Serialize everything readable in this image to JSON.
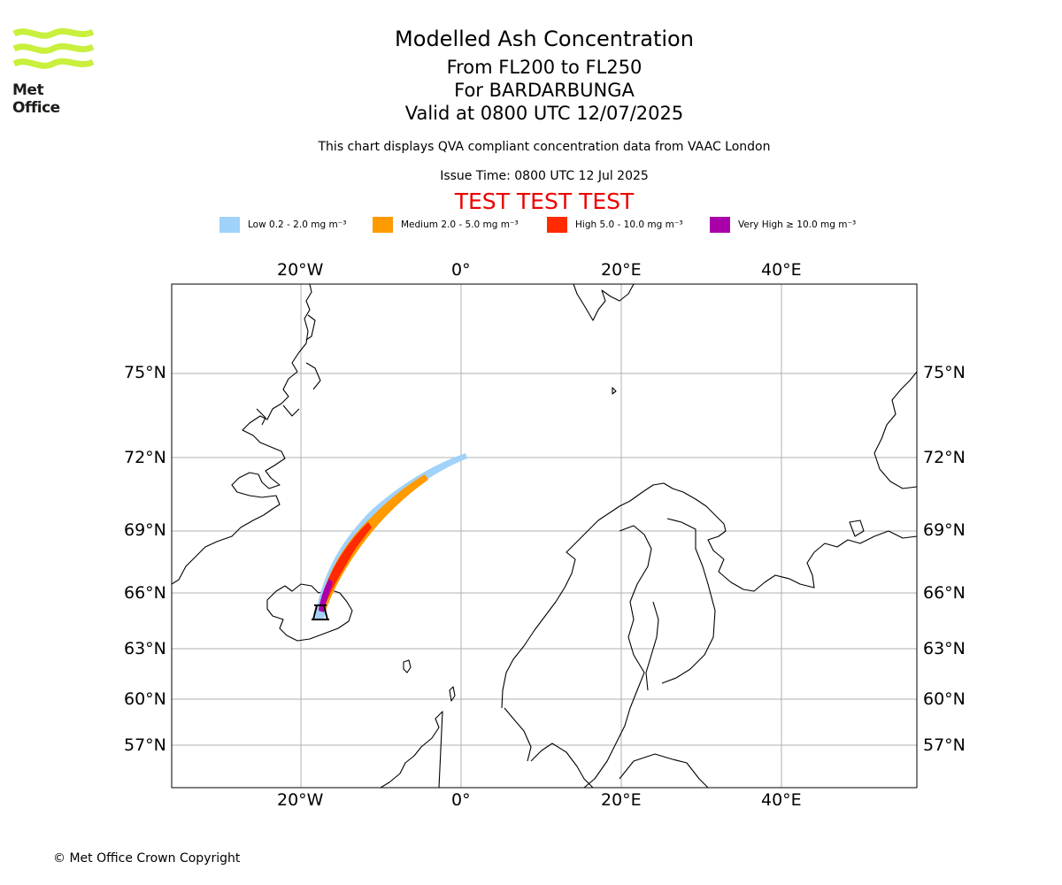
{
  "header": {
    "logo_text": "Met Office",
    "title": "Modelled Ash Concentration",
    "levels": "From FL200 to FL250",
    "volcano": "For BARDARBUNGA",
    "valid": "Valid at 0800 UTC 12/07/2025",
    "subtitle": "This chart displays QVA compliant concentration data from VAAC London",
    "issue_time": "Issue Time: 0800 UTC 12 Jul 2025",
    "test_banner": "TEST TEST TEST"
  },
  "legend": [
    {
      "label": "Low 0.2 - 2.0 mg m⁻³",
      "color": "#a0d2fa"
    },
    {
      "label": "Medium 2.0 - 5.0 mg m⁻³",
      "color": "#ff9a00"
    },
    {
      "label": "High 5.0 - 10.0 mg m⁻³",
      "color": "#ff2a00"
    },
    {
      "label": "Very High  ≥  10.0 mg m⁻³",
      "color": "#aa00aa"
    }
  ],
  "map": {
    "lon_labels_top": [
      "20°W",
      "0°",
      "20°E",
      "40°E"
    ],
    "lon_labels_bottom": [
      "20°W",
      "0°",
      "20°E",
      "40°E"
    ],
    "lat_labels_left": [
      "75°N",
      "72°N",
      "69°N",
      "66°N",
      "63°N",
      "60°N",
      "57°N"
    ],
    "lat_labels_right": [
      "75°N",
      "72°N",
      "69°N",
      "66°N",
      "63°N",
      "60°N",
      "57°N"
    ],
    "grid_color": "#b0b0b0",
    "coast_color": "#000000"
  },
  "footer": {
    "copyright": "© Met Office Crown Copyright"
  }
}
